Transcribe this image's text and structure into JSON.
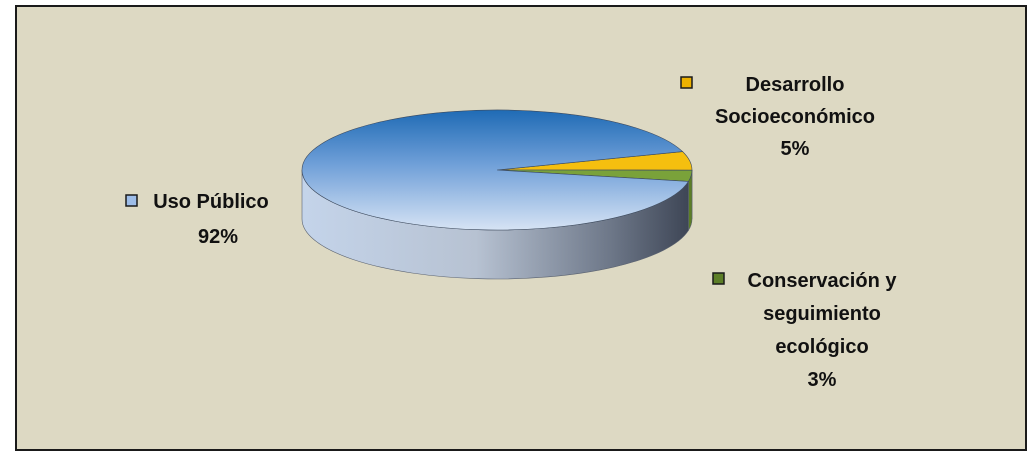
{
  "chart_data": {
    "type": "pie",
    "three_d": true,
    "title": "",
    "series": [
      {
        "name": "Uso Público",
        "value": 92,
        "value_label": "92%",
        "color": "#9dbde8",
        "top_color": "#1f6bb5"
      },
      {
        "name": "Desarrollo Socioeconómico",
        "name_lines": [
          "Desarrollo",
          "Socioeconómico"
        ],
        "value": 5,
        "value_label": "5%",
        "color": "#ecb100",
        "top_color": "#f5bf0f"
      },
      {
        "name": "Conservación y seguimiento ecológico",
        "name_lines": [
          "Conservación y",
          "seguimiento",
          "ecológico"
        ],
        "value": 3,
        "value_label": "3%",
        "color": "#5c7e27",
        "top_color": "#7aa23a"
      }
    ],
    "legend": "none",
    "background": "#ddd9c3"
  }
}
